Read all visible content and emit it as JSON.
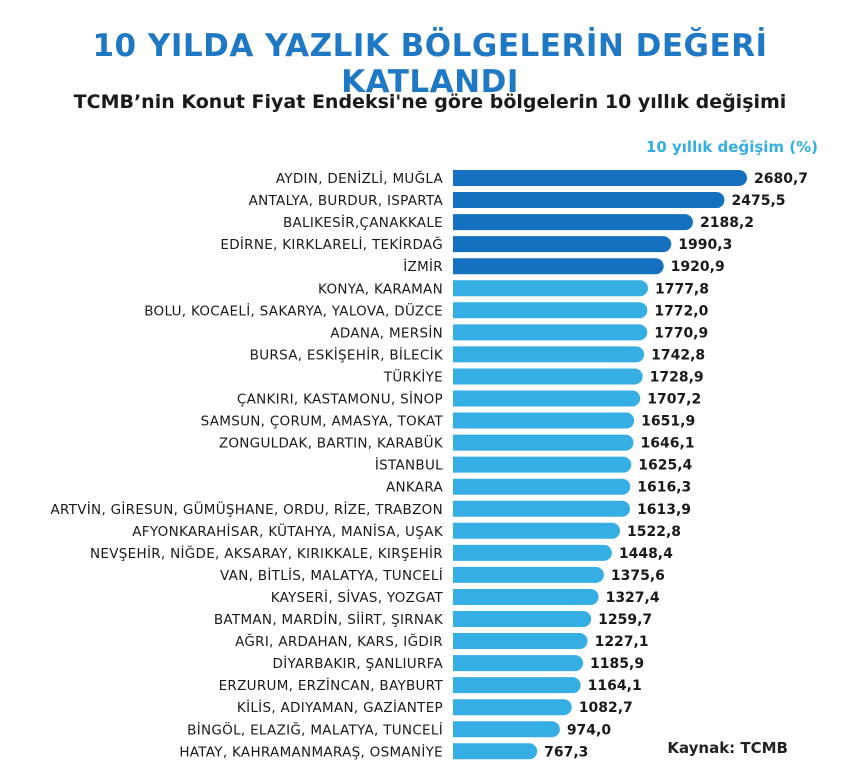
{
  "header": {
    "title": "10 YILDA YAZLIK BÖLGELERİN DEĞERİ KATLANDI",
    "subtitle": "TCMB’nin Konut Fiyat Endeksi'ne göre bölgelerin 10 yıllık değişimi"
  },
  "legend_label": "10 yıllık değişim (%)",
  "source": "Kaynak: TCMB",
  "colors": {
    "title": "#1e78c4",
    "bar_dark": "#1570c0",
    "bar_light": "#35aee4"
  },
  "chart_data": {
    "type": "bar",
    "orientation": "horizontal",
    "title": "10 YILDA YAZLIK BÖLGELERİN DEĞERİ KATLANDI",
    "subtitle": "TCMB’nin Konut Fiyat Endeksi'ne göre bölgelerin 10 yıllık değişimi",
    "series": [
      {
        "name": "10 yıllık değişim (%)"
      }
    ],
    "categories": [
      "AYDIN, DENİZLİ, MUĞLA",
      "ANTALYA, BURDUR, ISPARTA",
      "BALIKESİR,ÇANAKKALE",
      "EDİRNE, KIRKLARELİ, TEKİRDAĞ",
      "İZMİR",
      "KONYA, KARAMAN",
      "BOLU, KOCAELİ, SAKARYA, YALOVA, DÜZCE",
      "ADANA, MERSİN",
      "BURSA, ESKİŞEHİR, BİLECİK",
      "TÜRKİYE",
      "ÇANKIRI, KASTAMONU, SİNOP",
      "SAMSUN, ÇORUM, AMASYA, TOKAT",
      "ZONGULDAK, BARTIN, KARABÜK",
      "İSTANBUL",
      "ANKARA",
      "ARTVİN, GİRESUN, GÜMÜŞHANE, ORDU, RİZE, TRABZON",
      "AFYONKARAHİSAR, KÜTAHYA, MANİSA, UŞAK",
      "NEVŞEHİR, NİĞDE, AKSARAY, KIRIKKALE, KIRŞEHİR",
      "VAN, BİTLİS, MALATYA, TUNCELİ",
      "KAYSERİ, SİVAS, YOZGAT",
      "BATMAN, MARDİN, SİİRT, ŞIRNAK",
      "AĞRI, ARDAHAN, KARS, IĞDIR",
      "DİYARBAKIR, ŞANLIURFA",
      "ERZURUM, ERZİNCAN, BAYBURT",
      "KİLİS, ADIYAMAN, GAZİANTEP",
      "BİNGÖL, ELAZIĞ, MALATYA, TUNCELİ",
      "HATAY, KAHRAMANMARAŞ, OSMANİYE"
    ],
    "values": [
      2680.7,
      2475.5,
      2188.2,
      1990.3,
      1920.9,
      1777.8,
      1772.0,
      1770.9,
      1742.8,
      1728.9,
      1707.2,
      1651.9,
      1646.1,
      1625.4,
      1616.3,
      1613.9,
      1522.8,
      1448.4,
      1375.6,
      1327.4,
      1259.7,
      1227.1,
      1185.9,
      1164.1,
      1082.7,
      974.0,
      767.3
    ],
    "value_labels": [
      "2680,7",
      "2475,5",
      "2188,2",
      "1990,3",
      "1920,9",
      "1777,8",
      "1772,0",
      "1770,9",
      "1742,8",
      "1728,9",
      "1707,2",
      "1651,9",
      "1646,1",
      "1625,4",
      "1616,3",
      "1613,9",
      "1522,8",
      "1448,4",
      "1375,6",
      "1327,4",
      "1259,7",
      "1227,1",
      "1185,9",
      "1164,1",
      "1082,7",
      "974,0",
      "767,3"
    ],
    "highlight_count": 5,
    "xlim": [
      0,
      2680.7
    ]
  }
}
